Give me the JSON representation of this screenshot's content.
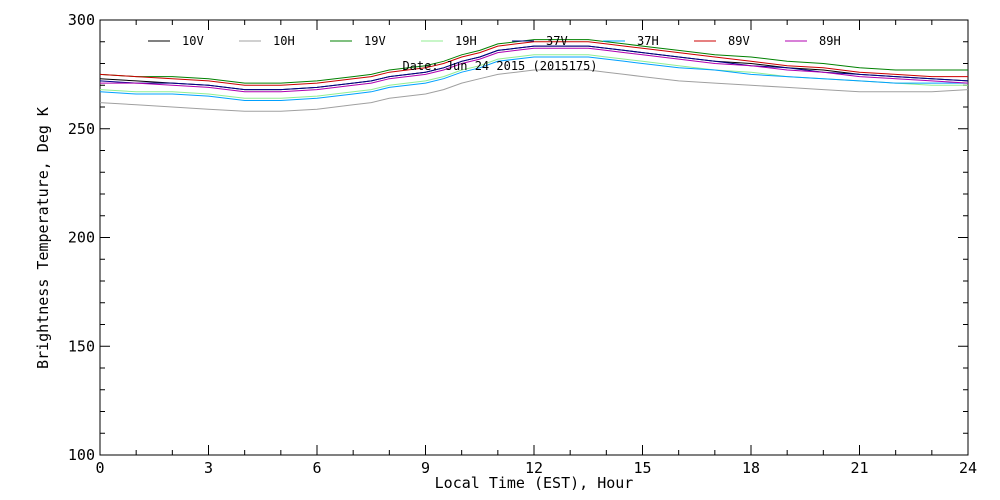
{
  "chart_data": {
    "type": "line",
    "title": "",
    "date_label": "Date: Jun 24 2015 (2015175)",
    "xlabel": "Local Time (EST), Hour",
    "ylabel": "Brightness Temperature, Deg K",
    "xlim": [
      0,
      24
    ],
    "ylim": [
      100,
      300
    ],
    "x_ticks": [
      0,
      3,
      6,
      9,
      12,
      15,
      18,
      21,
      24
    ],
    "y_ticks": [
      100,
      150,
      200,
      250,
      300
    ],
    "grid": false,
    "legend_position": "top",
    "x": [
      0,
      1,
      2,
      3,
      4,
      5,
      6,
      7,
      7.5,
      8,
      9,
      9.5,
      10,
      10.5,
      11,
      11.5,
      12,
      12.5,
      13,
      13.5,
      14,
      14.5,
      15,
      16,
      17,
      18,
      19,
      20,
      21,
      22,
      23,
      24
    ],
    "series": [
      {
        "name": "10V",
        "color": "#000000",
        "values": [
          273,
          272,
          271,
          270,
          268,
          268,
          269,
          271,
          272,
          274,
          276,
          278,
          281,
          283,
          286,
          287,
          288,
          288,
          288,
          288,
          287,
          286,
          285,
          283,
          281,
          280,
          278,
          277,
          275,
          274,
          273,
          272
        ]
      },
      {
        "name": "10H",
        "color": "#a0a0a0",
        "values": [
          262,
          261,
          260,
          259,
          258,
          258,
          259,
          261,
          262,
          264,
          266,
          268,
          271,
          273,
          275,
          276,
          277,
          277,
          277,
          277,
          276,
          275,
          274,
          272,
          271,
          270,
          269,
          268,
          267,
          267,
          267,
          268
        ]
      },
      {
        "name": "19V",
        "color": "#008000",
        "values": [
          275,
          274,
          274,
          273,
          271,
          271,
          272,
          274,
          275,
          277,
          279,
          281,
          284,
          286,
          289,
          290,
          291,
          291,
          291,
          291,
          290,
          289,
          288,
          286,
          284,
          283,
          281,
          280,
          278,
          277,
          277,
          277
        ]
      },
      {
        "name": "19H",
        "color": "#90ee90",
        "values": [
          268,
          267,
          267,
          266,
          264,
          264,
          265,
          267,
          268,
          270,
          272,
          274,
          277,
          279,
          282,
          283,
          284,
          284,
          284,
          284,
          283,
          282,
          281,
          279,
          277,
          276,
          274,
          273,
          272,
          271,
          270,
          270
        ]
      },
      {
        "name": "37V",
        "color": "#00008b",
        "values": [
          272,
          271,
          271,
          270,
          268,
          268,
          269,
          271,
          272,
          274,
          276,
          278,
          281,
          283,
          286,
          287,
          288,
          288,
          288,
          288,
          287,
          286,
          285,
          283,
          281,
          279,
          278,
          276,
          275,
          274,
          273,
          272
        ]
      },
      {
        "name": "37H",
        "color": "#00a0ff",
        "values": [
          267,
          266,
          266,
          265,
          263,
          263,
          264,
          266,
          267,
          269,
          271,
          273,
          276,
          278,
          281,
          282,
          283,
          283,
          283,
          283,
          282,
          281,
          280,
          278,
          277,
          275,
          274,
          273,
          272,
          271,
          271,
          271
        ]
      },
      {
        "name": "89V",
        "color": "#cc0000",
        "values": [
          275,
          274,
          273,
          272,
          270,
          270,
          271,
          273,
          274,
          276,
          278,
          280,
          283,
          285,
          288,
          289,
          290,
          290,
          290,
          290,
          289,
          288,
          287,
          285,
          283,
          281,
          279,
          278,
          276,
          275,
          274,
          274
        ]
      },
      {
        "name": "89H",
        "color": "#b000b0",
        "values": [
          271,
          271,
          270,
          269,
          267,
          267,
          268,
          270,
          271,
          273,
          275,
          277,
          280,
          282,
          285,
          286,
          287,
          287,
          287,
          287,
          286,
          285,
          284,
          282,
          280,
          279,
          277,
          276,
          274,
          273,
          272,
          271
        ]
      }
    ]
  }
}
